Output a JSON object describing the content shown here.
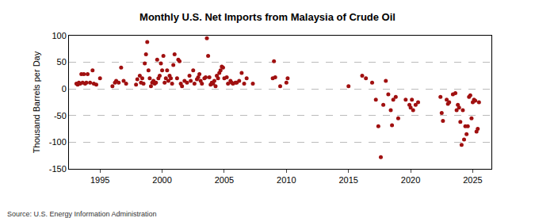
{
  "chart_data": {
    "type": "scatter",
    "title": "Monthly U.S. Net Imports from Malaysia of Crude Oil",
    "y_label": "Thousand Barrels per Day",
    "source": "Source: U.S. Energy Information Administration",
    "color": "#a01010",
    "marker": "circle",
    "grid": true,
    "xlim": [
      1992.5,
      2026.5
    ],
    "xticks": [
      1995,
      2000,
      2005,
      2010,
      2015,
      2020,
      2025
    ],
    "ylim": [
      -150,
      100
    ],
    "yticks": [
      -150,
      -100,
      -50,
      0,
      50,
      100
    ],
    "x": [
      1993.1,
      1993.2,
      1993.3,
      1993.4,
      1993.5,
      1993.6,
      1993.7,
      1993.8,
      1993.9,
      1994.0,
      1994.2,
      1994.4,
      1994.5,
      1994.7,
      1995.0,
      1996.0,
      1996.2,
      1996.3,
      1996.5,
      1996.7,
      1996.9,
      1997.1,
      1997.9,
      1998.0,
      1998.2,
      1998.3,
      1998.4,
      1998.5,
      1998.6,
      1998.7,
      1998.8,
      1998.9,
      1999.0,
      1999.1,
      1999.2,
      1999.3,
      1999.4,
      1999.5,
      1999.6,
      1999.7,
      1999.8,
      1999.9,
      2000.0,
      2000.1,
      2000.2,
      2000.3,
      2000.4,
      2000.5,
      2000.6,
      2000.7,
      2000.8,
      2000.9,
      2001.0,
      2001.2,
      2001.3,
      2001.4,
      2001.5,
      2001.6,
      2001.8,
      2002.0,
      2002.2,
      2002.3,
      2002.5,
      2002.6,
      2002.8,
      2002.9,
      2003.0,
      2003.1,
      2003.2,
      2003.4,
      2003.5,
      2003.6,
      2003.7,
      2003.8,
      2003.9,
      2004.0,
      2004.1,
      2004.2,
      2004.3,
      2004.4,
      2004.5,
      2004.6,
      2004.7,
      2004.8,
      2004.9,
      2005.0,
      2005.2,
      2005.3,
      2005.5,
      2005.6,
      2005.7,
      2005.9,
      2006.0,
      2006.2,
      2006.4,
      2006.6,
      2006.8,
      2007.3,
      2008.9,
      2009.0,
      2009.1,
      2009.5,
      2010.0,
      2010.1,
      2015.0,
      2016.1,
      2016.4,
      2016.9,
      2017.2,
      2017.4,
      2017.6,
      2017.8,
      2018.0,
      2018.2,
      2018.4,
      2018.5,
      2018.6,
      2018.8,
      2019.0,
      2019.6,
      2019.9,
      2020.0,
      2020.1,
      2020.2,
      2020.4,
      2020.6,
      2022.4,
      2022.5,
      2022.6,
      2022.9,
      2023.0,
      2023.1,
      2023.4,
      2023.6,
      2023.7,
      2023.8,
      2023.9,
      2024.0,
      2024.1,
      2024.2,
      2024.3,
      2024.4,
      2024.5,
      2024.6,
      2024.7,
      2024.8,
      2024.9,
      2025.0,
      2025.1,
      2025.2,
      2025.3,
      2025.4,
      2025.5
    ],
    "values": [
      10,
      8,
      12,
      10,
      28,
      12,
      28,
      10,
      12,
      28,
      12,
      35,
      10,
      8,
      20,
      5,
      12,
      15,
      12,
      40,
      15,
      10,
      8,
      18,
      25,
      12,
      20,
      10,
      48,
      65,
      88,
      35,
      20,
      5,
      12,
      15,
      10,
      12,
      55,
      20,
      25,
      48,
      35,
      62,
      12,
      20,
      35,
      15,
      25,
      20,
      10,
      45,
      65,
      20,
      55,
      52,
      10,
      5,
      15,
      12,
      25,
      15,
      35,
      10,
      18,
      22,
      28,
      15,
      10,
      20,
      22,
      95,
      62,
      22,
      8,
      12,
      10,
      15,
      5,
      25,
      20,
      30,
      35,
      42,
      40,
      20,
      22,
      10,
      15,
      12,
      10,
      12,
      12,
      15,
      30,
      10,
      20,
      10,
      20,
      52,
      22,
      5,
      12,
      20,
      5,
      25,
      20,
      12,
      -20,
      -70,
      -128,
      -30,
      15,
      -10,
      -40,
      -68,
      -20,
      -15,
      -55,
      -20,
      -30,
      -35,
      -20,
      -40,
      -30,
      -25,
      -15,
      -45,
      -60,
      -20,
      -28,
      -25,
      -10,
      -8,
      -40,
      -30,
      -35,
      -62,
      -105,
      -40,
      -95,
      -70,
      -85,
      -70,
      -15,
      -12,
      -55,
      -25,
      -20,
      -22,
      -80,
      -75,
      -25
    ]
  }
}
